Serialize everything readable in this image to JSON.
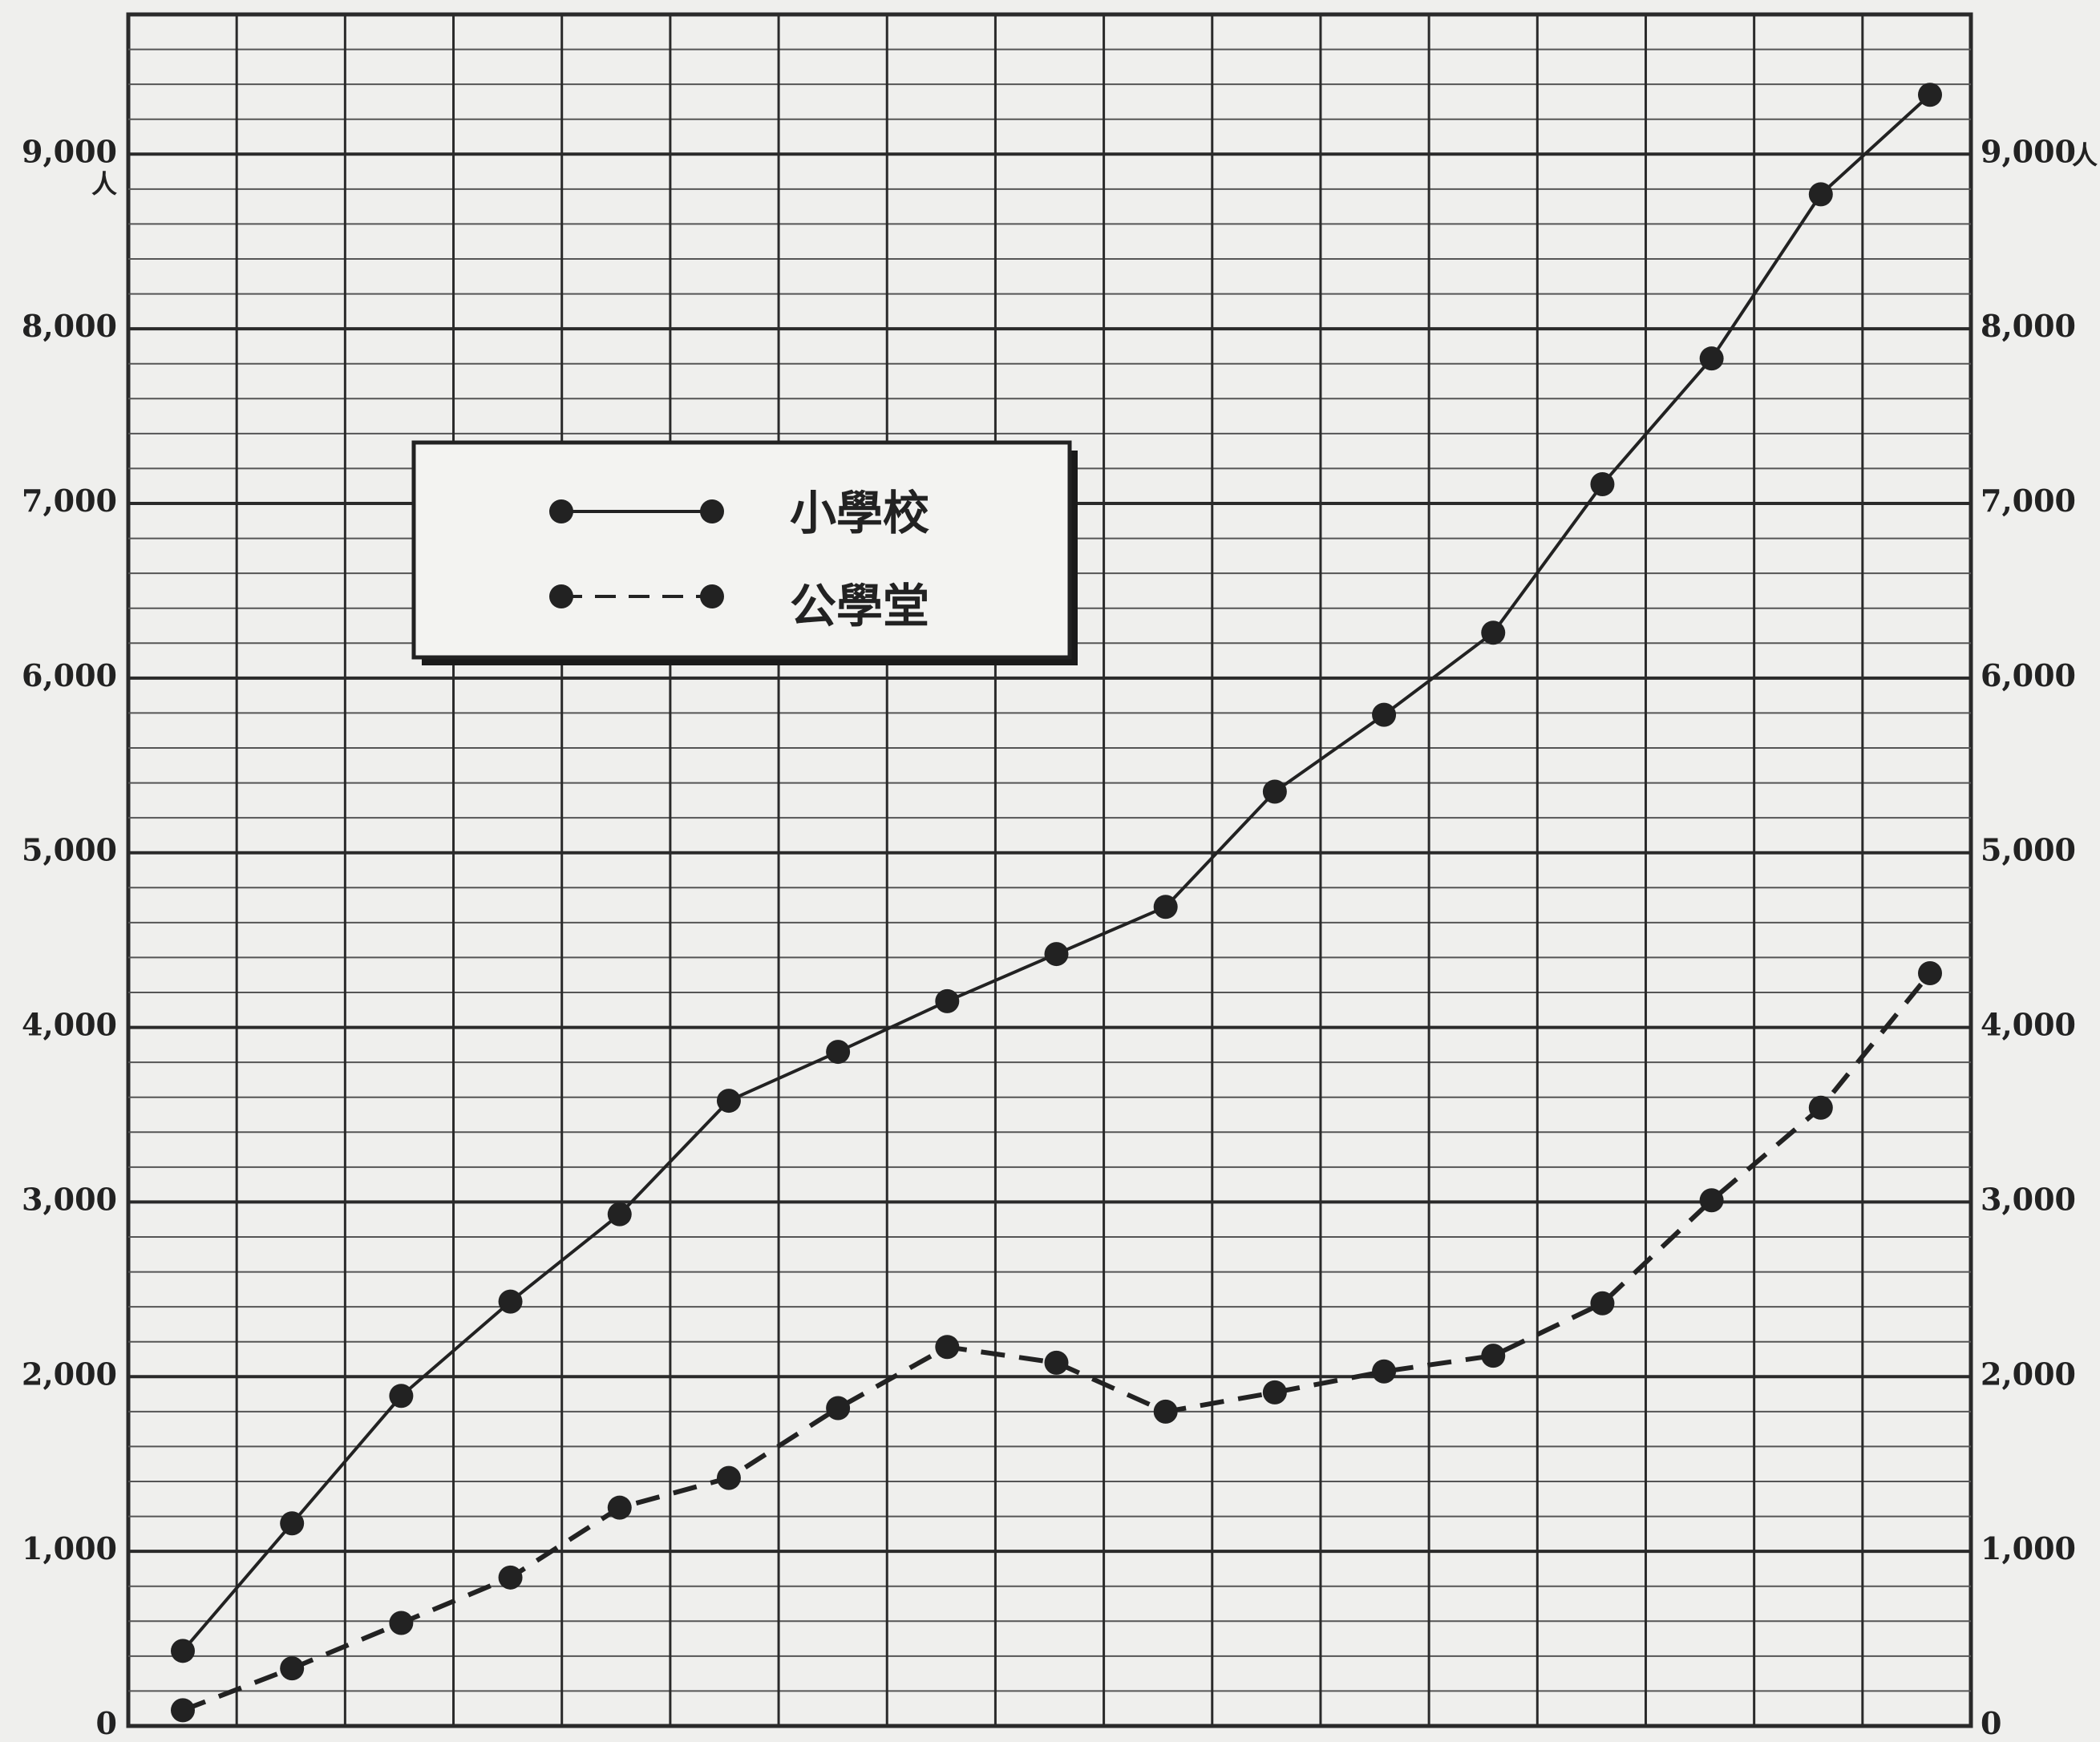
{
  "chart_data": {
    "type": "line",
    "title": "",
    "xlabel": "",
    "ylabel": "",
    "x": [
      1,
      2,
      3,
      4,
      5,
      6,
      7,
      8,
      9,
      10,
      11,
      12,
      13,
      14,
      15,
      16,
      17
    ],
    "ylim": [
      0,
      9800
    ],
    "y_ticks": [
      "0",
      "1,000",
      "2,000",
      "3,000",
      "4,000",
      "5,000",
      "6,000",
      "7,000",
      "8,000",
      "9,000"
    ],
    "y_tick_values": [
      0,
      1000,
      2000,
      3000,
      4000,
      5000,
      6000,
      7000,
      8000,
      9000
    ],
    "y_unit": "人",
    "grid": true,
    "legend_position": "top-left",
    "series": [
      {
        "name": "小學校",
        "style": "solid",
        "values": [
          430,
          1160,
          1890,
          2430,
          2930,
          3580,
          3860,
          4150,
          4420,
          4690,
          5350,
          5790,
          6260,
          7110,
          7830,
          8770,
          9340
        ]
      },
      {
        "name": "公學堂",
        "style": "dashed",
        "values": [
          90,
          330,
          590,
          850,
          1250,
          1420,
          1820,
          2170,
          2080,
          1800,
          1910,
          2030,
          2120,
          2420,
          3010,
          3540,
          4310
        ]
      }
    ],
    "colors": {
      "ink": "#222222",
      "grid": "#3a3a3a",
      "background": "#efefed"
    }
  }
}
